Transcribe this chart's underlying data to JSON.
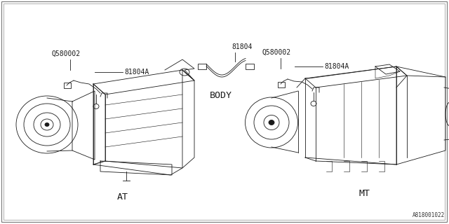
{
  "background_color": "#ffffff",
  "fig_width": 6.4,
  "fig_height": 3.2,
  "dpi": 100,
  "watermark": "A818001022",
  "labels": {
    "at_label": "AT",
    "mt_label": "MT",
    "body_label": "BODY",
    "at_part1": "Q580002",
    "at_part2": "81804A",
    "body_part": "81804",
    "mt_part1": "Q580002",
    "mt_part2": "81804A"
  },
  "line_color": "#1a1a1a",
  "text_color": "#1a1a1a",
  "line_width": 0.6,
  "font_size": 7.0,
  "label_font_size": 9.5,
  "border_outer": [
    2,
    2,
    635,
    315
  ],
  "border_inner": [
    5,
    5,
    629,
    309
  ]
}
